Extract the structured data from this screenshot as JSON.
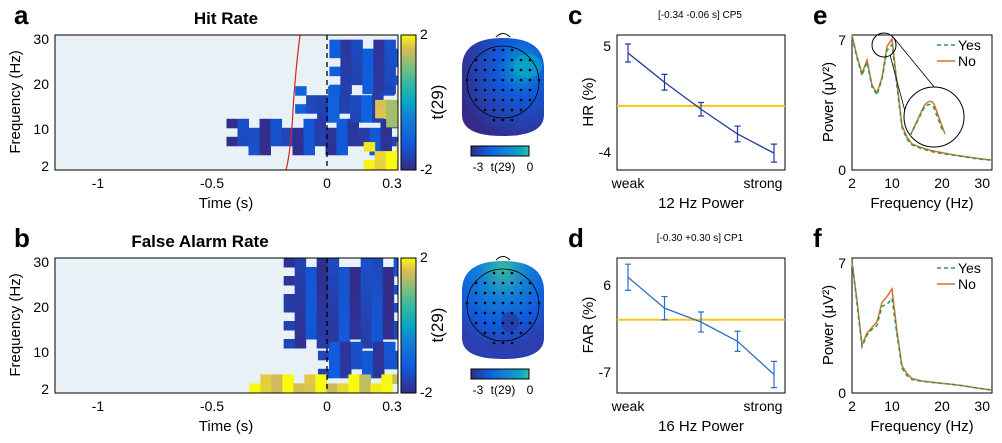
{
  "chart_data": [
    {
      "type": "heatmap",
      "panel": "a",
      "title": "Hit Rate",
      "xlabel": "Time (s)",
      "ylabel": "Frequency (Hz)",
      "xlim": [
        -1.2,
        0.3
      ],
      "ylim": [
        2,
        31
      ],
      "xticks": [
        "-1",
        "-0.5",
        "0",
        "0.3"
      ],
      "yticks": [
        "2",
        "10",
        "20",
        "30"
      ],
      "colorbar": {
        "label": "t(29)",
        "min": -2,
        "max": 2,
        "ticks": [
          "2",
          "-2"
        ]
      },
      "blobs": [
        {
          "t0": -0.45,
          "t1": 0.3,
          "f0": 6,
          "f1": 13,
          "t_value": -1.6
        },
        {
          "t0": -0.15,
          "t1": 0.25,
          "f0": 14,
          "f1": 20,
          "t_value": -1.4
        },
        {
          "t0": 0.0,
          "t1": 0.3,
          "f0": 20,
          "f1": 30,
          "t_value": -1.5
        },
        {
          "t0": 0.15,
          "t1": 0.3,
          "f0": 2,
          "f1": 8,
          "t_value": 2.0
        },
        {
          "t0": 0.2,
          "t1": 0.3,
          "f0": 13,
          "f1": 19,
          "t_value": 1.6
        }
      ],
      "event_line_x": 0
    },
    {
      "type": "heatmap",
      "panel": "b",
      "title": "False Alarm Rate",
      "xlabel": "Time (s)",
      "ylabel": "Frequency (Hz)",
      "xlim": [
        -1.2,
        0.3
      ],
      "ylim": [
        2,
        31
      ],
      "xticks": [
        "-1",
        "-0.5",
        "0",
        "0.3"
      ],
      "yticks": [
        "2",
        "10",
        "20",
        "30"
      ],
      "colorbar": {
        "label": "t(29)",
        "min": -2,
        "max": 2,
        "ticks": [
          "2",
          "-2"
        ]
      },
      "blobs": [
        {
          "t0": -0.2,
          "t1": 0.3,
          "f0": 13,
          "f1": 31,
          "t_value": -1.6
        },
        {
          "t0": -0.05,
          "t1": 0.3,
          "f0": 6,
          "f1": 13,
          "t_value": -1.5
        },
        {
          "t0": -0.35,
          "t1": 0.3,
          "f0": 2,
          "f1": 6,
          "t_value": 1.8
        }
      ],
      "event_line_x": 0
    },
    {
      "type": "line",
      "panel": "c",
      "annotation": "[-0.34 -0.06 s] CP5",
      "xlabel": "12 Hz Power",
      "ylabel": "HR (%)",
      "x": [
        1,
        2,
        3,
        4,
        5
      ],
      "xtick_labels": [
        "weak",
        "strong"
      ],
      "ylim": [
        -5.5,
        6.5
      ],
      "yticks": [
        "5",
        "-4"
      ],
      "series": [
        {
          "values": [
            4.9,
            2.3,
            -0.1,
            -2.3,
            -4.0
          ],
          "errors": [
            0.8,
            0.7,
            0.6,
            0.7,
            0.8
          ]
        }
      ],
      "reference_line": 0.2
    },
    {
      "type": "line",
      "panel": "d",
      "annotation": "[-0.30 +0.30 s] CP1",
      "xlabel": "16 Hz Power",
      "ylabel": "FAR (%)",
      "x": [
        1,
        2,
        3,
        4,
        5
      ],
      "xtick_labels": [
        "weak",
        "strong"
      ],
      "ylim": [
        -9,
        8.5
      ],
      "yticks": [
        "6",
        "-7"
      ],
      "series": [
        {
          "values": [
            6.0,
            2.0,
            0.2,
            -2.3,
            -6.6
          ],
          "errors": [
            1.7,
            1.5,
            1.3,
            1.3,
            1.7
          ]
        }
      ],
      "reference_line": 0.5
    },
    {
      "type": "line",
      "panel": "e",
      "xlabel": "Frequency (Hz)",
      "ylabel": "Power (μV²)",
      "xlim": [
        2,
        30
      ],
      "ylim": [
        0,
        7
      ],
      "xticks": [
        "2",
        "10",
        "20",
        "30"
      ],
      "yticks": [
        "7",
        "0"
      ],
      "legend_position": "top-right",
      "x": [
        2,
        3,
        4,
        5,
        6,
        7,
        8,
        9,
        10,
        11,
        12,
        13,
        14,
        15,
        16,
        18,
        20,
        22,
        24,
        26,
        28,
        30
      ],
      "series": [
        {
          "name": "Yes",
          "style": "dashed",
          "color": "#2a9a5a",
          "values": [
            6.9,
            5.8,
            4.9,
            5.6,
            4.3,
            3.9,
            4.7,
            6.2,
            6.5,
            4.3,
            2.2,
            1.6,
            1.3,
            1.2,
            1.1,
            0.95,
            0.85,
            0.78,
            0.7,
            0.62,
            0.55,
            0.5
          ]
        },
        {
          "name": "No",
          "style": "solid",
          "color": "#d1742a",
          "values": [
            7.0,
            5.9,
            5.0,
            5.7,
            4.4,
            4.0,
            4.8,
            6.4,
            6.8,
            4.5,
            2.3,
            1.7,
            1.35,
            1.25,
            1.15,
            1.0,
            0.9,
            0.8,
            0.72,
            0.64,
            0.57,
            0.52
          ]
        }
      ]
    },
    {
      "type": "line",
      "panel": "f",
      "xlabel": "Frequency (Hz)",
      "ylabel": "Power (μV²)",
      "xlim": [
        2,
        30
      ],
      "ylim": [
        0,
        7
      ],
      "xticks": [
        "2",
        "10",
        "20",
        "30"
      ],
      "yticks": [
        "7",
        "0"
      ],
      "legend_position": "top-right",
      "x": [
        2,
        3,
        4,
        5,
        6,
        7,
        8,
        9,
        10,
        11,
        12,
        13,
        14,
        15,
        16,
        18,
        20,
        22,
        24,
        26,
        28,
        30
      ],
      "series": [
        {
          "name": "Yes",
          "style": "dashed",
          "color": "#2a9a5a",
          "values": [
            6.9,
            4.6,
            2.4,
            3.0,
            3.3,
            3.5,
            4.5,
            4.6,
            4.9,
            3.0,
            1.3,
            0.9,
            0.7,
            0.65,
            0.6,
            0.55,
            0.5,
            0.45,
            0.38,
            0.3,
            0.22,
            0.15
          ]
        },
        {
          "name": "No",
          "style": "solid",
          "color": "#d1742a",
          "values": [
            6.8,
            4.8,
            2.5,
            3.1,
            3.4,
            3.7,
            4.7,
            5.0,
            5.4,
            3.2,
            1.4,
            1.0,
            0.75,
            0.68,
            0.62,
            0.56,
            0.5,
            0.45,
            0.38,
            0.3,
            0.22,
            0.15
          ]
        }
      ]
    }
  ],
  "topomaps": [
    {
      "colorbar_ticks": [
        "-3",
        "0"
      ],
      "colorbar_label": "t(29)"
    },
    {
      "colorbar_ticks": [
        "-3",
        "0"
      ],
      "colorbar_label": "t(29)"
    }
  ]
}
